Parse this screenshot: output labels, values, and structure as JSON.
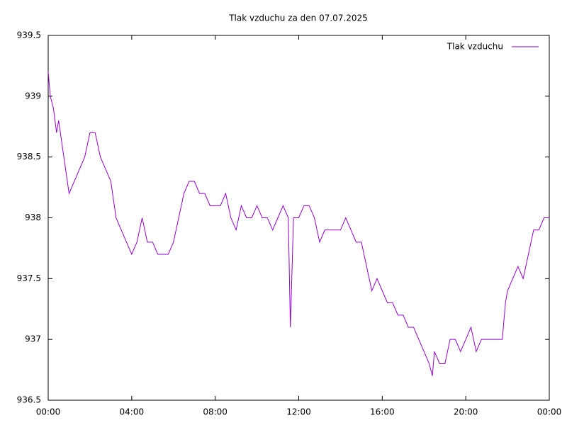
{
  "chart_data": {
    "type": "line",
    "title": "Tlak vzduchu za den 07.07.2025",
    "x": [
      0,
      0.1,
      0.25,
      0.4,
      0.5,
      0.75,
      1.0,
      1.25,
      1.5,
      1.75,
      2.0,
      2.25,
      2.5,
      2.75,
      3.0,
      3.25,
      3.5,
      3.75,
      4.0,
      4.25,
      4.5,
      4.75,
      5.0,
      5.25,
      5.5,
      5.75,
      6.0,
      6.25,
      6.5,
      6.75,
      7.0,
      7.25,
      7.5,
      7.75,
      8.0,
      8.25,
      8.5,
      8.75,
      9.0,
      9.25,
      9.5,
      9.75,
      10.0,
      10.25,
      10.5,
      10.75,
      11.0,
      11.25,
      11.5,
      11.6,
      11.75,
      12.0,
      12.25,
      12.5,
      12.75,
      13.0,
      13.25,
      13.5,
      13.75,
      14.0,
      14.25,
      14.5,
      14.75,
      15.0,
      15.25,
      15.5,
      15.75,
      16.0,
      16.25,
      16.5,
      16.75,
      17.0,
      17.25,
      17.5,
      17.75,
      18.0,
      18.25,
      18.4,
      18.5,
      18.75,
      19.0,
      19.25,
      19.5,
      19.75,
      20.0,
      20.25,
      20.5,
      20.75,
      21.0,
      21.25,
      21.5,
      21.75,
      21.9,
      22.0,
      22.25,
      22.5,
      22.75,
      23.0,
      23.25,
      23.5,
      23.75,
      24.0
    ],
    "series": [
      {
        "name": "Tlak vzduchu",
        "color": "#9400d3",
        "values": [
          939.2,
          939.0,
          938.9,
          938.7,
          938.8,
          938.5,
          938.2,
          938.3,
          938.4,
          938.5,
          938.7,
          938.7,
          938.5,
          938.4,
          938.3,
          938.0,
          937.9,
          937.8,
          937.7,
          937.8,
          938.0,
          937.8,
          937.8,
          937.7,
          937.7,
          937.7,
          937.8,
          938.0,
          938.2,
          938.3,
          938.3,
          938.2,
          938.2,
          938.1,
          938.1,
          938.1,
          938.2,
          938.0,
          937.9,
          938.1,
          938.0,
          938.0,
          938.1,
          938.0,
          938.0,
          937.9,
          938.0,
          938.1,
          938.0,
          937.1,
          938.0,
          938.0,
          938.1,
          938.1,
          938.0,
          937.8,
          937.9,
          937.9,
          937.9,
          937.9,
          938.0,
          937.9,
          937.8,
          937.8,
          937.6,
          937.4,
          937.5,
          937.4,
          937.3,
          937.3,
          937.2,
          937.2,
          937.1,
          937.1,
          937.0,
          936.9,
          936.8,
          936.7,
          936.9,
          936.8,
          936.8,
          937.0,
          937.0,
          936.9,
          937.0,
          937.1,
          936.9,
          937.0,
          937.0,
          937.0,
          937.0,
          937.0,
          937.3,
          937.4,
          937.5,
          937.6,
          937.5,
          937.7,
          937.9,
          937.9,
          938.0,
          938.0
        ]
      }
    ],
    "xlim": [
      0,
      24
    ],
    "xticks": [
      {
        "value": 0,
        "label": "00:00"
      },
      {
        "value": 4,
        "label": "04:00"
      },
      {
        "value": 8,
        "label": "08:00"
      },
      {
        "value": 12,
        "label": "12:00"
      },
      {
        "value": 16,
        "label": "16:00"
      },
      {
        "value": 20,
        "label": "20:00"
      },
      {
        "value": 24,
        "label": "00:00"
      }
    ],
    "ylim": [
      936.5,
      939.5
    ],
    "yticks": [
      936.5,
      937,
      937.5,
      938,
      938.5,
      939,
      939.5
    ],
    "grid": false,
    "legend": "top-right"
  }
}
